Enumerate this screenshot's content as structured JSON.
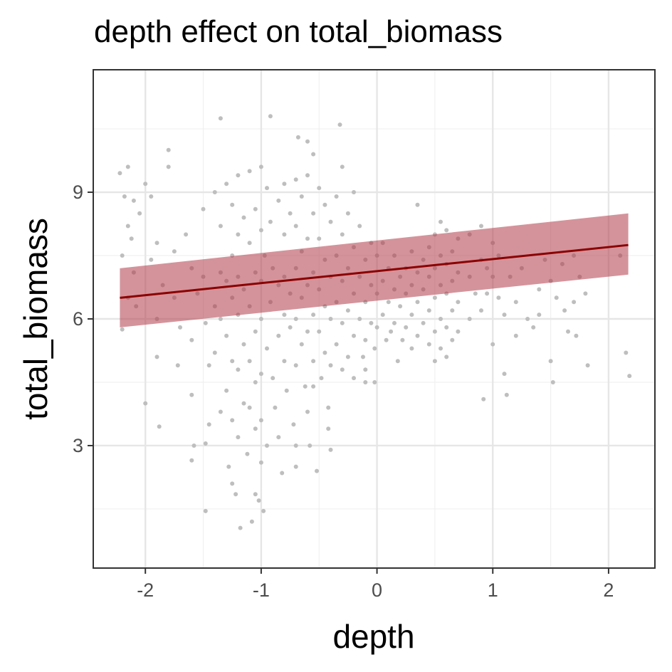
{
  "chart_data": {
    "type": "scatter",
    "title": "depth effect on total_biomass",
    "xlabel": "depth",
    "ylabel": "total_biomass",
    "xlim": [
      -2.45,
      2.4
    ],
    "ylim": [
      0.1,
      11.9
    ],
    "x_ticks": [
      -2,
      -1,
      0,
      1,
      2
    ],
    "x_tick_labels": [
      "-2",
      "-1",
      "0",
      "1",
      "2"
    ],
    "y_ticks": [
      3,
      6,
      9
    ],
    "y_tick_labels": [
      "3",
      "6",
      "9"
    ],
    "grid": true,
    "point_color": "#bebebe",
    "line_color": "#8b0000",
    "band_color": "#b03a48",
    "fit_line": {
      "x": [
        -2.22,
        2.17
      ],
      "y": [
        6.5,
        7.75
      ]
    },
    "confidence_band": {
      "x": [
        -2.22,
        2.17
      ],
      "lower": [
        5.8,
        7.05
      ],
      "upper": [
        7.2,
        8.5
      ]
    },
    "points": [
      [
        -2.22,
        9.45
      ],
      [
        -2.15,
        9.6
      ],
      [
        -2.18,
        8.9
      ],
      [
        -2.1,
        8.8
      ],
      [
        -2.05,
        8.5
      ],
      [
        -2.15,
        8.2
      ],
      [
        -2.12,
        7.9
      ],
      [
        -2.2,
        7.5
      ],
      [
        -2.1,
        7.1
      ],
      [
        -2.15,
        6.5
      ],
      [
        -2.08,
        6.3
      ],
      [
        -2.2,
        5.75
      ],
      [
        -2.0,
        9.2
      ],
      [
        -1.95,
        8.9
      ],
      [
        -1.9,
        7.8
      ],
      [
        -1.95,
        7.4
      ],
      [
        -1.85,
        6.8
      ],
      [
        -1.9,
        6.0
      ],
      [
        -1.9,
        5.1
      ],
      [
        -1.88,
        3.45
      ],
      [
        -2.0,
        4.0
      ],
      [
        -1.8,
        10.0
      ],
      [
        -1.8,
        9.6
      ],
      [
        -1.75,
        7.6
      ],
      [
        -1.75,
        6.5
      ],
      [
        -1.7,
        5.8
      ],
      [
        -1.72,
        4.9
      ],
      [
        -1.65,
        8.0
      ],
      [
        -1.6,
        7.2
      ],
      [
        -1.6,
        5.5
      ],
      [
        -1.6,
        4.2
      ],
      [
        -1.58,
        3.0
      ],
      [
        -1.6,
        2.65
      ],
      [
        -1.55,
        6.6
      ],
      [
        -1.5,
        8.6
      ],
      [
        -1.5,
        7.0
      ],
      [
        -1.48,
        5.9
      ],
      [
        -1.45,
        4.9
      ],
      [
        -1.45,
        3.5
      ],
      [
        -1.48,
        3.05
      ],
      [
        -1.48,
        1.45
      ],
      [
        -1.4,
        9.0
      ],
      [
        -1.4,
        6.3
      ],
      [
        -1.4,
        5.2
      ],
      [
        -1.35,
        10.75
      ],
      [
        -1.35,
        8.2
      ],
      [
        -1.35,
        7.1
      ],
      [
        -1.35,
        6.0
      ],
      [
        -1.35,
        3.8
      ],
      [
        -1.3,
        9.2
      ],
      [
        -1.3,
        6.9
      ],
      [
        -1.3,
        5.6
      ],
      [
        -1.3,
        4.3
      ],
      [
        -1.28,
        2.5
      ],
      [
        -1.25,
        8.7
      ],
      [
        -1.25,
        7.5
      ],
      [
        -1.25,
        6.5
      ],
      [
        -1.25,
        5.0
      ],
      [
        -1.25,
        3.6
      ],
      [
        -1.25,
        2.1
      ],
      [
        -1.22,
        1.85
      ],
      [
        -1.2,
        9.4
      ],
      [
        -1.2,
        8.0
      ],
      [
        -1.2,
        7.0
      ],
      [
        -1.2,
        6.1
      ],
      [
        -1.2,
        4.8
      ],
      [
        -1.2,
        3.2
      ],
      [
        -1.18,
        1.05
      ],
      [
        -1.15,
        8.4
      ],
      [
        -1.15,
        6.7
      ],
      [
        -1.15,
        5.4
      ],
      [
        -1.15,
        4.0
      ],
      [
        -1.12,
        2.8
      ],
      [
        -1.1,
        9.5
      ],
      [
        -1.1,
        7.8
      ],
      [
        -1.1,
        6.3
      ],
      [
        -1.1,
        5.0
      ],
      [
        -1.1,
        3.9
      ],
      [
        -1.08,
        1.2
      ],
      [
        -1.05,
        8.6
      ],
      [
        -1.05,
        7.1
      ],
      [
        -1.05,
        5.7
      ],
      [
        -1.05,
        4.5
      ],
      [
        -1.05,
        3.4
      ],
      [
        -1.05,
        1.85
      ],
      [
        -1.0,
        9.6
      ],
      [
        -1.0,
        8.1
      ],
      [
        -1.0,
        6.9
      ],
      [
        -1.0,
        6.0
      ],
      [
        -1.0,
        4.7
      ],
      [
        -1.0,
        3.6
      ],
      [
        -1.0,
        2.6
      ],
      [
        -1.02,
        1.7
      ],
      [
        -0.98,
        1.45
      ],
      [
        -0.97,
        7.5
      ],
      [
        -0.95,
        9.1
      ],
      [
        -0.95,
        5.3
      ],
      [
        -0.95,
        3.0
      ],
      [
        -0.92,
        10.8
      ],
      [
        -0.92,
        8.3
      ],
      [
        -0.92,
        6.4
      ],
      [
        -0.9,
        7.2
      ],
      [
        -0.9,
        4.6
      ],
      [
        -0.88,
        3.9
      ],
      [
        -0.85,
        8.8
      ],
      [
        -0.85,
        6.8
      ],
      [
        -0.85,
        5.6
      ],
      [
        -0.85,
        3.2
      ],
      [
        -0.82,
        2.35
      ],
      [
        -0.8,
        9.2
      ],
      [
        -0.8,
        8.0
      ],
      [
        -0.8,
        7.0
      ],
      [
        -0.8,
        6.1
      ],
      [
        -0.8,
        5.0
      ],
      [
        -0.78,
        4.3
      ],
      [
        -0.75,
        8.5
      ],
      [
        -0.75,
        6.6
      ],
      [
        -0.75,
        5.8
      ],
      [
        -0.72,
        3.5
      ],
      [
        -0.7,
        9.3
      ],
      [
        -0.7,
        8.2
      ],
      [
        -0.7,
        7.2
      ],
      [
        -0.7,
        6.0
      ],
      [
        -0.7,
        4.9
      ],
      [
        -0.7,
        3.0
      ],
      [
        -0.7,
        2.5
      ],
      [
        -0.68,
        10.3
      ],
      [
        -0.65,
        8.9
      ],
      [
        -0.65,
        7.6
      ],
      [
        -0.65,
        6.5
      ],
      [
        -0.65,
        5.4
      ],
      [
        -0.62,
        4.4
      ],
      [
        -0.6,
        10.2
      ],
      [
        -0.6,
        9.4
      ],
      [
        -0.6,
        7.9
      ],
      [
        -0.6,
        6.8
      ],
      [
        -0.6,
        5.7
      ],
      [
        -0.6,
        3.8
      ],
      [
        -0.58,
        3.0
      ],
      [
        -0.55,
        9.9
      ],
      [
        -0.55,
        8.5
      ],
      [
        -0.55,
        7.1
      ],
      [
        -0.55,
        6.1
      ],
      [
        -0.55,
        5.0
      ],
      [
        -0.55,
        4.4
      ],
      [
        -0.52,
        2.4
      ],
      [
        -0.5,
        9.1
      ],
      [
        -0.5,
        7.9
      ],
      [
        -0.5,
        6.7
      ],
      [
        -0.5,
        5.7
      ],
      [
        -0.48,
        4.6
      ],
      [
        -0.45,
        8.7
      ],
      [
        -0.45,
        7.4
      ],
      [
        -0.45,
        6.3
      ],
      [
        -0.45,
        5.2
      ],
      [
        -0.42,
        3.9
      ],
      [
        -0.4,
        8.3
      ],
      [
        -0.4,
        7.0
      ],
      [
        -0.4,
        6.0
      ],
      [
        -0.4,
        4.9
      ],
      [
        -0.42,
        3.4
      ],
      [
        -0.4,
        2.9
      ],
      [
        -0.35,
        8.9
      ],
      [
        -0.35,
        7.5
      ],
      [
        -0.35,
        6.4
      ],
      [
        -0.35,
        5.4
      ],
      [
        -0.32,
        10.6
      ],
      [
        -0.3,
        9.6
      ],
      [
        -0.3,
        8.0
      ],
      [
        -0.3,
        6.9
      ],
      [
        -0.3,
        5.9
      ],
      [
        -0.3,
        4.8
      ],
      [
        -0.25,
        8.5
      ],
      [
        -0.25,
        7.2
      ],
      [
        -0.25,
        6.2
      ],
      [
        -0.25,
        5.1
      ],
      [
        -0.2,
        9.0
      ],
      [
        -0.2,
        7.7
      ],
      [
        -0.2,
        6.6
      ],
      [
        -0.2,
        5.6
      ],
      [
        -0.2,
        4.6
      ],
      [
        -0.15,
        8.2
      ],
      [
        -0.15,
        7.0
      ],
      [
        -0.15,
        6.0
      ],
      [
        -0.12,
        5.1
      ],
      [
        -0.1,
        7.4
      ],
      [
        -0.1,
        6.4
      ],
      [
        -0.1,
        5.5
      ],
      [
        -0.1,
        4.8
      ],
      [
        -0.05,
        7.8
      ],
      [
        -0.05,
        6.8
      ],
      [
        -0.05,
        5.9
      ],
      [
        -0.02,
        5.3
      ],
      [
        -0.1,
        4.5
      ],
      [
        -0.02,
        4.5
      ],
      [
        0.0,
        7.5
      ],
      [
        0.0,
        6.6
      ],
      [
        0.0,
        5.8
      ],
      [
        0.05,
        7.8
      ],
      [
        0.05,
        6.9
      ],
      [
        0.05,
        6.1
      ],
      [
        0.08,
        5.5
      ],
      [
        0.1,
        7.2
      ],
      [
        0.1,
        6.4
      ],
      [
        0.12,
        5.7
      ],
      [
        0.15,
        7.5
      ],
      [
        0.15,
        6.7
      ],
      [
        0.15,
        5.9
      ],
      [
        0.18,
        5.0
      ],
      [
        0.2,
        7.0
      ],
      [
        0.2,
        6.3
      ],
      [
        0.22,
        5.5
      ],
      [
        0.25,
        7.2
      ],
      [
        0.25,
        6.6
      ],
      [
        0.25,
        5.8
      ],
      [
        0.3,
        7.6
      ],
      [
        0.3,
        6.8
      ],
      [
        0.3,
        6.1
      ],
      [
        0.3,
        5.3
      ],
      [
        0.35,
        8.7
      ],
      [
        0.35,
        7.1
      ],
      [
        0.35,
        6.4
      ],
      [
        0.35,
        5.6
      ],
      [
        0.4,
        7.4
      ],
      [
        0.4,
        6.7
      ],
      [
        0.4,
        5.9
      ],
      [
        0.45,
        7.7
      ],
      [
        0.45,
        7.0
      ],
      [
        0.45,
        6.2
      ],
      [
        0.45,
        5.4
      ],
      [
        0.5,
        8.0
      ],
      [
        0.5,
        7.2
      ],
      [
        0.5,
        6.5
      ],
      [
        0.5,
        5.7
      ],
      [
        0.5,
        5.0
      ],
      [
        0.55,
        8.3
      ],
      [
        0.55,
        7.5
      ],
      [
        0.55,
        6.8
      ],
      [
        0.55,
        6.0
      ],
      [
        0.55,
        5.3
      ],
      [
        0.6,
        8.1
      ],
      [
        0.6,
        7.3
      ],
      [
        0.6,
        6.6
      ],
      [
        0.6,
        5.8
      ],
      [
        0.6,
        5.1
      ],
      [
        0.65,
        7.6
      ],
      [
        0.65,
        6.9
      ],
      [
        0.65,
        6.2
      ],
      [
        0.65,
        5.5
      ],
      [
        0.7,
        7.9
      ],
      [
        0.7,
        7.1
      ],
      [
        0.7,
        6.4
      ],
      [
        0.7,
        5.7
      ],
      [
        0.8,
        8.0
      ],
      [
        0.8,
        7.0
      ],
      [
        0.85,
        6.6
      ],
      [
        0.8,
        6.0
      ],
      [
        0.9,
        8.2
      ],
      [
        0.9,
        7.4
      ],
      [
        0.9,
        6.2
      ],
      [
        0.92,
        4.1
      ],
      [
        0.95,
        7.2
      ],
      [
        0.95,
        6.6
      ],
      [
        1.0,
        7.8
      ],
      [
        1.0,
        7.0
      ],
      [
        1.0,
        5.4
      ],
      [
        1.05,
        7.5
      ],
      [
        1.05,
        6.5
      ],
      [
        1.1,
        6.1
      ],
      [
        1.1,
        4.7
      ],
      [
        1.12,
        4.2
      ],
      [
        1.15,
        7.0
      ],
      [
        1.2,
        6.4
      ],
      [
        1.2,
        5.6
      ],
      [
        1.25,
        7.2
      ],
      [
        1.3,
        6.0
      ],
      [
        1.35,
        5.8
      ],
      [
        1.4,
        6.7
      ],
      [
        1.4,
        6.1
      ],
      [
        1.45,
        7.4
      ],
      [
        1.5,
        6.9
      ],
      [
        1.5,
        5.0
      ],
      [
        1.52,
        4.5
      ],
      [
        1.55,
        6.5
      ],
      [
        1.6,
        7.3
      ],
      [
        1.62,
        6.2
      ],
      [
        1.65,
        5.7
      ],
      [
        1.7,
        7.5
      ],
      [
        1.7,
        6.4
      ],
      [
        1.72,
        5.6
      ],
      [
        1.75,
        7.0
      ],
      [
        1.8,
        6.6
      ],
      [
        1.82,
        4.9
      ],
      [
        2.1,
        7.5
      ],
      [
        2.15,
        5.2
      ],
      [
        2.18,
        4.65
      ]
    ]
  }
}
